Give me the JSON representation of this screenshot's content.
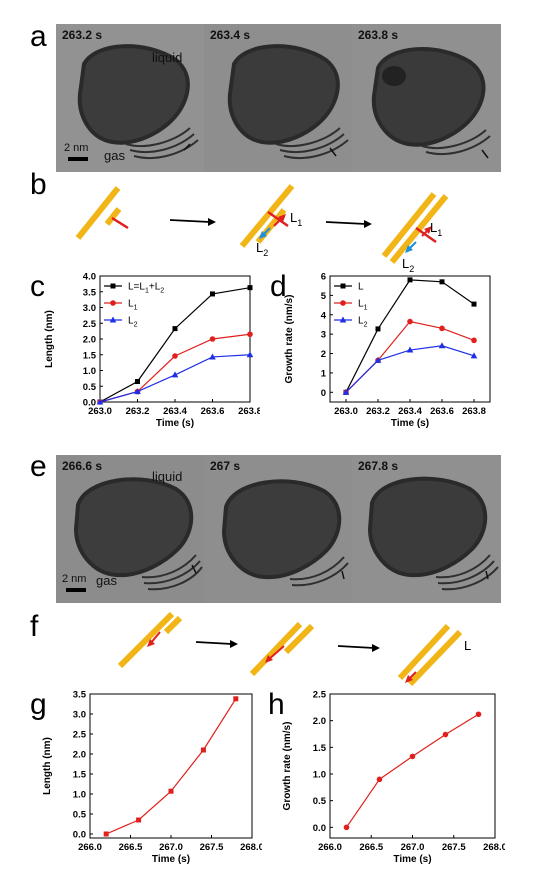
{
  "panels": {
    "a": {
      "letter": "a",
      "frames": [
        "263.2 s",
        "263.4 s",
        "263.8 s"
      ],
      "liquid_label": "liquid",
      "gas_label": "gas",
      "scalebar_label": "2 nm"
    },
    "b": {
      "letter": "b",
      "l1_label": "L",
      "l1_sub": "1",
      "l2_label": "L",
      "l2_sub": "2"
    },
    "c": {
      "letter": "c"
    },
    "d": {
      "letter": "d"
    },
    "e": {
      "letter": "e",
      "frames": [
        "266.6 s",
        "267 s",
        "267.8 s"
      ],
      "liquid_label": "liquid",
      "gas_label": "gas",
      "scalebar_label": "2 nm"
    },
    "f": {
      "letter": "f",
      "l_label": "L"
    },
    "g": {
      "letter": "g"
    },
    "h": {
      "letter": "h"
    }
  },
  "colors": {
    "rod": "#f2b518",
    "red_arrow": "#e02020",
    "blue_arrow": "#1e8fd8",
    "series_black": "#000000",
    "series_red": "#e0201c",
    "series_blue": "#1f2fe6"
  },
  "chart_data": [
    {
      "id": "c",
      "type": "line",
      "xlabel": "Time (s)",
      "ylabel": "Length (nm)",
      "xlim": [
        263.0,
        263.8
      ],
      "ylim": [
        0.0,
        4.0
      ],
      "xticks": [
        "263.0",
        "263.2",
        "263.4",
        "263.6",
        "263.8"
      ],
      "yticks": [
        "0.0",
        "0.5",
        "1.0",
        "1.5",
        "2.0",
        "2.5",
        "3.0",
        "3.5",
        "4.0"
      ],
      "legend_position": "top-left",
      "x": [
        263.0,
        263.2,
        263.4,
        263.6,
        263.8
      ],
      "series": [
        {
          "name": "L=L1+L2",
          "legend_main": "L=L",
          "legend_sub1": "1",
          "legend_mid": "+L",
          "legend_sub2": "2",
          "marker": "square",
          "color": "#000000",
          "values": [
            0.0,
            0.65,
            2.33,
            3.43,
            3.63
          ]
        },
        {
          "name": "L1",
          "legend_main": "L",
          "legend_sub1": "1",
          "marker": "circle",
          "color": "#e0201c",
          "values": [
            0.0,
            0.33,
            1.46,
            2.0,
            2.15
          ]
        },
        {
          "name": "L2",
          "legend_main": "L",
          "legend_sub1": "2",
          "marker": "triangle",
          "color": "#1f2fe6",
          "values": [
            0.0,
            0.33,
            0.86,
            1.43,
            1.5
          ]
        }
      ]
    },
    {
      "id": "d",
      "type": "line",
      "xlabel": "Time (s)",
      "ylabel": "Growth rate (nm/s)",
      "xlim": [
        262.9,
        263.9
      ],
      "ylim": [
        -0.5,
        6.0
      ],
      "xticks": [
        "263.0",
        "263.2",
        "263.4",
        "263.6",
        "263.8"
      ],
      "yticks": [
        "0",
        "1",
        "2",
        "3",
        "4",
        "5",
        "6"
      ],
      "legend_position": "top-left",
      "x": [
        263.0,
        263.2,
        263.4,
        263.6,
        263.8
      ],
      "series": [
        {
          "name": "L",
          "legend_main": "L",
          "legend_sub1": "",
          "marker": "square",
          "color": "#000000",
          "values": [
            0.0,
            3.27,
            5.8,
            5.7,
            4.55
          ]
        },
        {
          "name": "L1",
          "legend_main": "L",
          "legend_sub1": "1",
          "marker": "circle",
          "color": "#e0201c",
          "values": [
            0.0,
            1.65,
            3.65,
            3.3,
            2.68
          ]
        },
        {
          "name": "L2",
          "legend_main": "L",
          "legend_sub1": "2",
          "marker": "triangle",
          "color": "#1f2fe6",
          "values": [
            0.0,
            1.65,
            2.18,
            2.4,
            1.88
          ]
        }
      ]
    },
    {
      "id": "g",
      "type": "line",
      "xlabel": "Time (s)",
      "ylabel": "Length (nm)",
      "xlim": [
        266.0,
        268.0
      ],
      "ylim": [
        -0.1,
        3.5
      ],
      "xticks": [
        "266.0",
        "266.5",
        "267.0",
        "267.5",
        "268.0"
      ],
      "yticks": [
        "0.0",
        "0.5",
        "1.0",
        "1.5",
        "2.0",
        "2.5",
        "3.0",
        "3.5"
      ],
      "x": [
        266.2,
        266.6,
        267.0,
        267.4,
        267.8
      ],
      "series": [
        {
          "marker": "square",
          "color": "#e0201c",
          "values": [
            0.0,
            0.35,
            1.07,
            2.1,
            3.38
          ]
        }
      ]
    },
    {
      "id": "h",
      "type": "line",
      "xlabel": "Time (s)",
      "ylabel": "Growth rate (nm/s)",
      "xlim": [
        266.0,
        268.0
      ],
      "ylim": [
        -0.2,
        2.5
      ],
      "xticks": [
        "266.0",
        "266.5",
        "267.0",
        "267.5",
        "268.0"
      ],
      "yticks": [
        "0.0",
        "0.5",
        "1.0",
        "1.5",
        "2.0",
        "2.5"
      ],
      "x": [
        266.2,
        266.6,
        267.0,
        267.4,
        267.8
      ],
      "series": [
        {
          "marker": "circle",
          "color": "#e0201c",
          "values": [
            0.0,
            0.9,
            1.33,
            1.74,
            2.12
          ]
        }
      ]
    }
  ]
}
